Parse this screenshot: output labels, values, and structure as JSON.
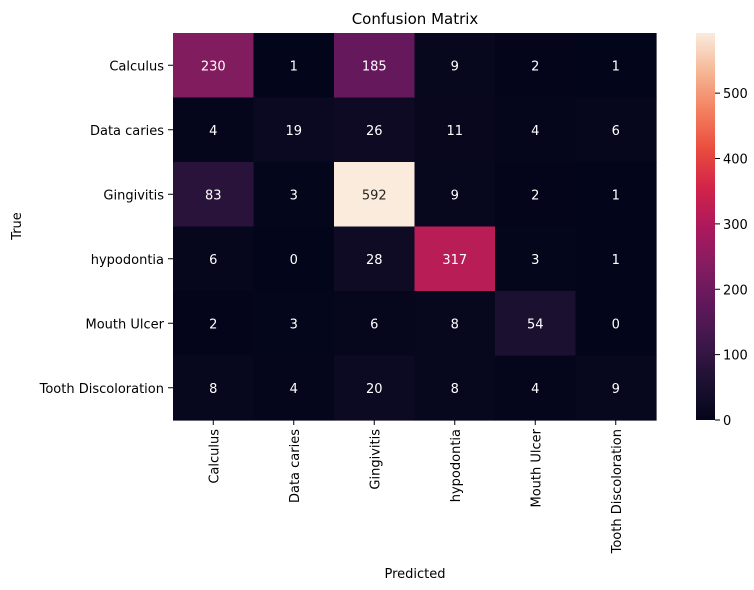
{
  "chart_data": {
    "type": "heatmap",
    "title": "Confusion Matrix",
    "xlabel": "Predicted",
    "ylabel": "True",
    "row_labels": [
      "Calculus",
      "Data caries",
      "Gingivitis",
      "hypodontia",
      "Mouth Ulcer",
      "Tooth Discoloration"
    ],
    "col_labels": [
      "Calculus",
      "Data caries",
      "Gingivitis",
      "hypodontia",
      "Mouth Ulcer",
      "Tooth Discoloration"
    ],
    "values": [
      [
        230,
        1,
        185,
        9,
        2,
        1
      ],
      [
        4,
        19,
        26,
        11,
        4,
        6
      ],
      [
        83,
        3,
        592,
        9,
        2,
        1
      ],
      [
        6,
        0,
        28,
        317,
        3,
        1
      ],
      [
        2,
        3,
        6,
        8,
        54,
        0
      ],
      [
        8,
        4,
        20,
        8,
        4,
        9
      ]
    ],
    "colorbar": {
      "min": 0,
      "max": 592,
      "ticks": [
        0,
        100,
        200,
        300,
        400,
        500
      ]
    },
    "colormap": "rocket"
  }
}
